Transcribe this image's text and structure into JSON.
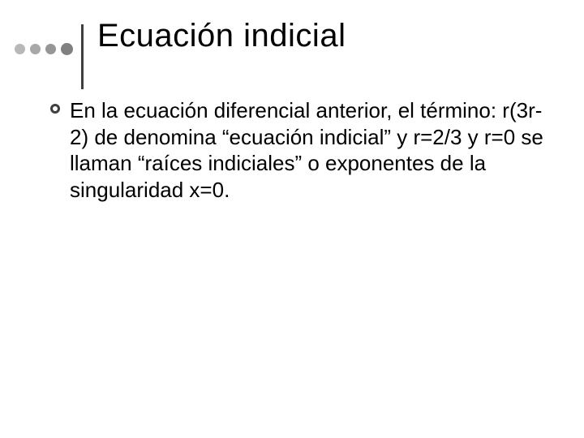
{
  "slide": {
    "title": "Ecuación indicial",
    "bullet_text": "En la ecuación diferencial anterior, el término: r(3r-2) de denomina “ecuación indicial” y r=2/3 y r=0 se llaman “raíces indiciales” o exponentes de la singularidad x=0."
  },
  "styling": {
    "background_color": "#ffffff",
    "title_color": "#000000",
    "title_fontsize": 40,
    "body_color": "#000000",
    "body_fontsize": 26,
    "dot_colors": [
      "#b8b8b8",
      "#a8a8a8",
      "#969696",
      "#808080"
    ],
    "vline_color": "#3f3f3f",
    "bullet_border_color": "#3f3f3f",
    "bullet_fill_color": "#ffffff"
  }
}
